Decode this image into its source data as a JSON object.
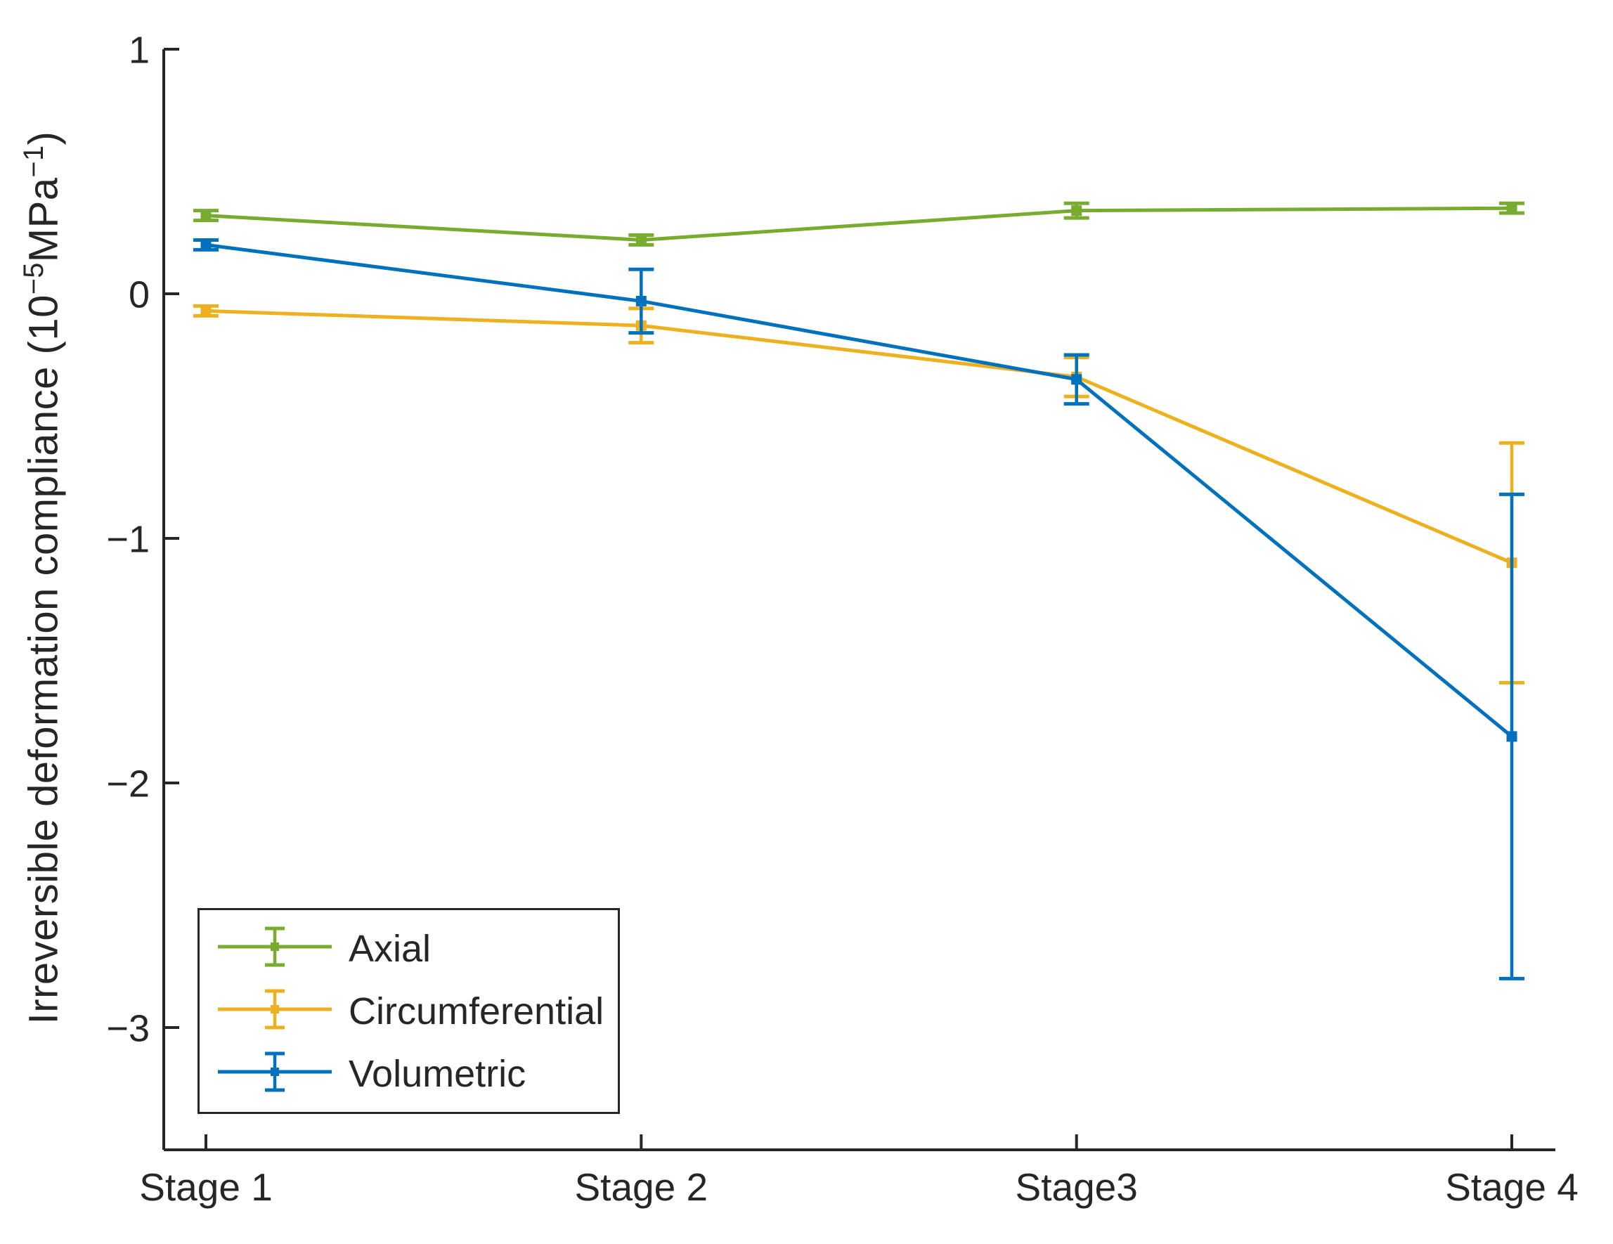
{
  "figure": {
    "background": "#FFFFFF",
    "axis_color": "#262626"
  },
  "chart_data": {
    "type": "line",
    "subtype": "errorbar",
    "title": "",
    "xlabel": "",
    "categories": [
      "Stage 1",
      "Stage 2",
      "Stage3",
      "Stage 4"
    ],
    "ylabel_parts": {
      "prefix": "Irreversible deformation compliance  (10",
      "sup1": "−5",
      "mid": "MPa",
      "sup2": "−1",
      "suffix": ")"
    },
    "ylabel_plain": "Irreversible deformation compliance (10^-5 MPa^-1)",
    "ylim": [
      -3.5,
      1
    ],
    "grid": false,
    "ytick_values": [
      1,
      0,
      -1,
      -2,
      -3
    ],
    "ytick_labels": [
      "1",
      "0",
      "−1",
      "−2",
      "−3"
    ],
    "marker": "square",
    "series": [
      {
        "name": "Axial",
        "color": "#77AC30",
        "values": [
          0.32,
          0.22,
          0.34,
          0.35
        ],
        "errors": [
          0.02,
          0.02,
          0.03,
          0.02
        ]
      },
      {
        "name": "Circumferential",
        "color": "#EDB120",
        "values": [
          -0.07,
          -0.13,
          -0.34,
          -1.1
        ],
        "errors": [
          0.02,
          0.07,
          0.08,
          0.49
        ]
      },
      {
        "name": "Volumetric",
        "color": "#0072BD",
        "values": [
          0.2,
          -0.03,
          -0.35,
          -1.81
        ],
        "errors": [
          0.02,
          0.13,
          0.1,
          0.99
        ]
      }
    ],
    "legend": {
      "position": "bottom-left",
      "entries": [
        "Axial",
        "Circumferential",
        "Volumetric"
      ]
    }
  }
}
